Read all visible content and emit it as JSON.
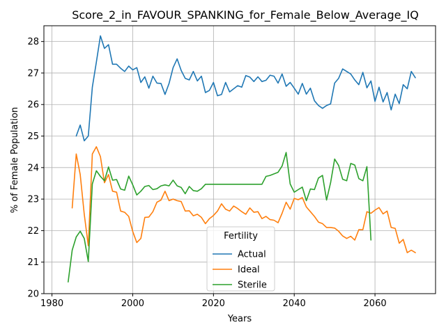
{
  "chart_data": {
    "type": "line",
    "title": "Score_2_in_FAVOUR_SPANKING_for_Female_Below_Average_IQ",
    "xlabel": "Years",
    "ylabel": "% of Female Population",
    "xlim": [
      1978,
      2075
    ],
    "ylim": [
      20,
      28.5
    ],
    "xticks": [
      1980,
      2000,
      2020,
      2040,
      2060
    ],
    "yticks": [
      20,
      21,
      22,
      23,
      24,
      25,
      26,
      27,
      28
    ],
    "grid": true,
    "legend": {
      "title": "Fertility",
      "placement": "lower-center"
    },
    "series": [
      {
        "name": "Actual",
        "color": "#1f77b4",
        "x": [
          1986,
          1987,
          1988,
          1989,
          1990,
          1991,
          1992,
          1993,
          1994,
          1995,
          1996,
          1997,
          1998,
          1999,
          2000,
          2001,
          2002,
          2003,
          2004,
          2005,
          2006,
          2007,
          2008,
          2009,
          2010,
          2011,
          2012,
          2013,
          2014,
          2015,
          2016,
          2017,
          2018,
          2019,
          2020,
          2021,
          2022,
          2023,
          2024,
          2025,
          2026,
          2027,
          2028,
          2029,
          2030,
          2031,
          2032,
          2033,
          2034,
          2035,
          2036,
          2037,
          2038,
          2039,
          2040,
          2041,
          2042,
          2043,
          2044,
          2045,
          2046,
          2047,
          2048,
          2049,
          2050,
          2051,
          2052,
          2053,
          2054,
          2055,
          2056,
          2057,
          2058,
          2059,
          2060,
          2061,
          2062,
          2063,
          2064,
          2065,
          2066,
          2067,
          2068,
          2069,
          2070
        ],
        "values": [
          25.0,
          25.35,
          24.85,
          25.0,
          26.55,
          27.35,
          28.18,
          27.78,
          27.9,
          27.28,
          27.28,
          27.15,
          27.05,
          27.22,
          27.1,
          27.17,
          26.7,
          26.88,
          26.52,
          26.9,
          26.68,
          26.67,
          26.32,
          26.67,
          27.17,
          27.45,
          27.08,
          26.83,
          26.78,
          27.05,
          26.75,
          26.9,
          26.38,
          26.45,
          26.7,
          26.28,
          26.32,
          26.7,
          26.4,
          26.5,
          26.6,
          26.55,
          26.92,
          26.87,
          26.73,
          26.88,
          26.73,
          26.77,
          26.93,
          26.9,
          26.68,
          26.97,
          26.58,
          26.7,
          26.52,
          26.33,
          26.67,
          26.33,
          26.52,
          26.12,
          25.97,
          25.88,
          25.97,
          26.02,
          26.68,
          26.83,
          27.13,
          27.05,
          26.97,
          26.78,
          26.63,
          27.02,
          26.53,
          26.75,
          26.1,
          26.55,
          26.08,
          26.38,
          25.83,
          26.33,
          26.03,
          26.63,
          26.5,
          27.05,
          26.85
        ]
      },
      {
        "name": "Ideal",
        "color": "#ff7f0e",
        "x": [
          1985,
          1986,
          1987,
          1988,
          1989,
          1990,
          1991,
          1992,
          1993,
          1994,
          1995,
          1996,
          1997,
          1998,
          1999,
          2000,
          2001,
          2002,
          2003,
          2004,
          2005,
          2006,
          2007,
          2008,
          2009,
          2010,
          2011,
          2012,
          2013,
          2014,
          2015,
          2016,
          2017,
          2018,
          2019,
          2020,
          2021,
          2022,
          2023,
          2024,
          2025,
          2026,
          2027,
          2028,
          2029,
          2030,
          2031,
          2032,
          2033,
          2034,
          2035,
          2036,
          2037,
          2038,
          2039,
          2040,
          2041,
          2042,
          2043,
          2044,
          2045,
          2046,
          2047,
          2048,
          2049,
          2050,
          2051,
          2052,
          2053,
          2054,
          2055,
          2056,
          2057,
          2058,
          2059,
          2060,
          2061,
          2062,
          2063,
          2064,
          2065,
          2066,
          2067,
          2068,
          2069,
          2070
        ],
        "values": [
          22.72,
          24.43,
          23.78,
          22.52,
          21.52,
          24.43,
          24.66,
          24.35,
          23.52,
          23.78,
          23.25,
          23.22,
          22.62,
          22.58,
          22.45,
          21.97,
          21.62,
          21.75,
          22.42,
          22.43,
          22.6,
          22.9,
          22.97,
          23.25,
          22.95,
          23.0,
          22.95,
          22.92,
          22.62,
          22.63,
          22.47,
          22.52,
          22.42,
          22.22,
          22.38,
          22.48,
          22.62,
          22.85,
          22.68,
          22.62,
          22.78,
          22.7,
          22.6,
          22.52,
          22.72,
          22.58,
          22.6,
          22.38,
          22.45,
          22.35,
          22.33,
          22.25,
          22.55,
          22.9,
          22.68,
          23.02,
          22.98,
          23.05,
          22.75,
          22.6,
          22.45,
          22.27,
          22.22,
          22.1,
          22.1,
          22.08,
          21.98,
          21.83,
          21.75,
          21.82,
          21.7,
          22.03,
          22.03,
          22.6,
          22.55,
          22.65,
          22.73,
          22.53,
          22.62,
          22.1,
          22.07,
          21.6,
          21.72,
          21.3,
          21.38,
          21.3
        ]
      },
      {
        "name": "Sterile",
        "color": "#2ca02c",
        "x": [
          1984,
          1985,
          1986,
          1987,
          1988,
          1989,
          1990,
          1991,
          1992,
          1993,
          1994,
          1995,
          1996,
          1997,
          1998,
          1999,
          2000,
          2001,
          2002,
          2003,
          2004,
          2005,
          2006,
          2007,
          2008,
          2009,
          2010,
          2011,
          2012,
          2013,
          2014,
          2015,
          2016,
          2017,
          2018,
          2019,
          2020,
          2021,
          2022,
          2023,
          2024,
          2025,
          2026,
          2027,
          2028,
          2029,
          2030,
          2031,
          2032,
          2033,
          2034,
          2035,
          2036,
          2037,
          2038,
          2039,
          2040,
          2041,
          2042,
          2043,
          2044,
          2045,
          2046,
          2047,
          2048,
          2049,
          2050,
          2051,
          2052,
          2053,
          2054,
          2055,
          2056,
          2057,
          2058,
          2059
        ],
        "values": [
          20.37,
          21.38,
          21.8,
          21.98,
          21.75,
          21.02,
          23.48,
          23.9,
          23.72,
          23.58,
          24.02,
          23.6,
          23.62,
          23.32,
          23.28,
          23.73,
          23.45,
          23.13,
          23.25,
          23.4,
          23.43,
          23.3,
          23.33,
          23.42,
          23.45,
          23.42,
          23.6,
          23.42,
          23.37,
          23.17,
          23.4,
          23.27,
          23.25,
          23.33,
          23.47,
          23.47,
          23.47,
          23.47,
          23.47,
          23.47,
          23.47,
          23.47,
          23.47,
          23.47,
          23.47,
          23.47,
          23.47,
          23.47,
          23.47,
          23.72,
          23.75,
          23.8,
          23.85,
          24.05,
          24.48,
          23.48,
          23.22,
          23.3,
          23.38,
          22.95,
          23.32,
          23.3,
          23.67,
          23.75,
          22.97,
          23.52,
          24.27,
          24.07,
          23.63,
          23.58,
          24.13,
          24.08,
          23.65,
          23.58,
          24.03,
          21.7
        ]
      }
    ]
  }
}
